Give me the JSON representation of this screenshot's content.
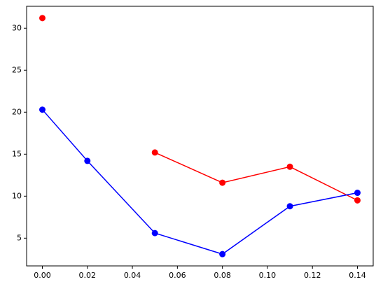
{
  "chart_data": {
    "type": "line",
    "x": [
      0,
      0.02,
      0.05,
      0.08,
      0.11,
      0.14
    ],
    "series": [
      {
        "color": "#ff0000",
        "values": [
          31.2,
          null,
          15.2,
          11.6,
          13.5,
          9.5
        ]
      },
      {
        "color": "#0000ff",
        "values": [
          20.3,
          14.2,
          5.6,
          3.1,
          8.8,
          10.4
        ]
      }
    ],
    "xlim": [
      -0.007,
      0.147
    ],
    "ylim": [
      1.695,
      32.605
    ],
    "xticks": [
      {
        "value": 0,
        "label": "0.00"
      },
      {
        "value": 0.02,
        "label": "0.02"
      },
      {
        "value": 0.04,
        "label": "0.04"
      },
      {
        "value": 0.06,
        "label": "0.06"
      },
      {
        "value": 0.08,
        "label": "0.08"
      },
      {
        "value": 0.1,
        "label": "0.10"
      },
      {
        "value": 0.12,
        "label": "0.12"
      },
      {
        "value": 0.14,
        "label": "0.14"
      }
    ],
    "yticks": [
      5,
      10,
      15,
      20,
      25,
      30
    ]
  }
}
